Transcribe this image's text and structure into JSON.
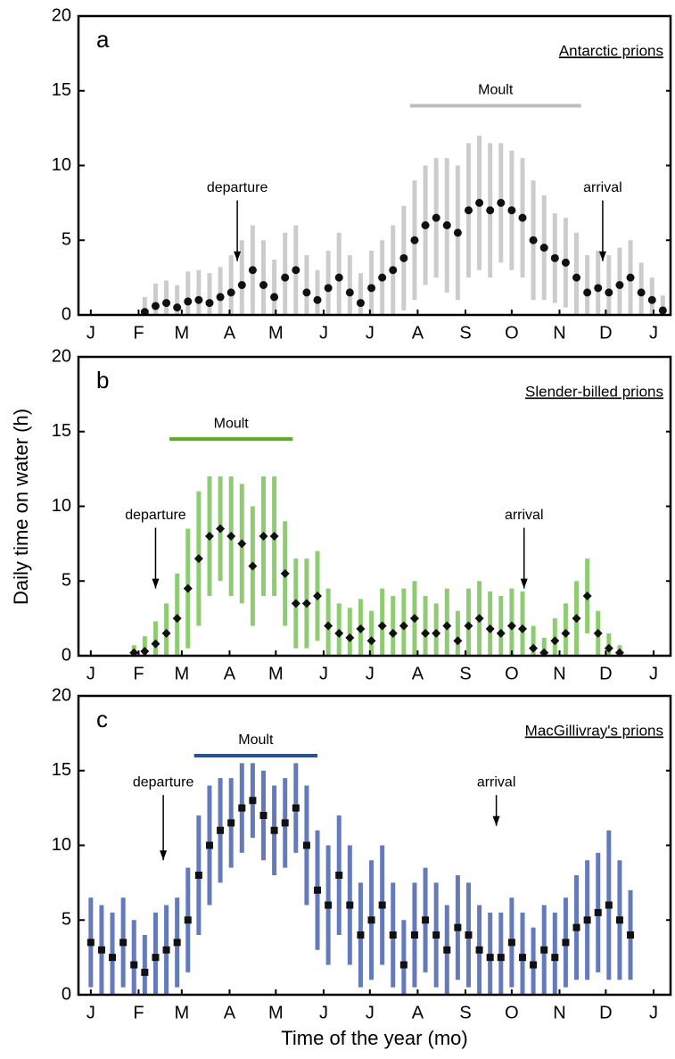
{
  "chart_data": [
    {
      "type": "scatter",
      "panel": "a",
      "title": "Antarctic prions",
      "marker": "circle",
      "color": "#111111",
      "error_color": "#c4c4c4",
      "x": [
        35,
        42,
        49,
        56,
        63,
        70,
        77,
        84,
        91,
        98,
        105,
        112,
        119,
        126,
        133,
        140,
        147,
        154,
        161,
        168,
        175,
        182,
        189,
        196,
        203,
        210,
        217,
        224,
        231,
        238,
        245,
        252,
        259,
        266,
        273,
        280,
        287,
        294,
        301,
        308,
        315,
        322,
        329,
        336,
        343,
        350,
        357,
        364,
        371
      ],
      "values": [
        0.2,
        0.6,
        0.8,
        0.5,
        0.9,
        1.0,
        0.8,
        1.2,
        1.5,
        2.0,
        3.0,
        2.0,
        1.2,
        2.5,
        3.0,
        1.5,
        1.0,
        1.8,
        2.5,
        1.5,
        0.8,
        1.8,
        2.5,
        3.0,
        3.8,
        5.0,
        6.0,
        6.5,
        6.0,
        5.5,
        7.0,
        7.5,
        7.0,
        7.5,
        7.0,
        6.5,
        5.0,
        4.5,
        3.8,
        3.5,
        2.5,
        1.5,
        1.8,
        1.5,
        2.0,
        2.5,
        1.5,
        1.0,
        0.3
      ],
      "errors": [
        1,
        1.5,
        1.5,
        1.5,
        2,
        2,
        2,
        2,
        2.5,
        3,
        3,
        3,
        2.5,
        3,
        3,
        2.5,
        2,
        2.5,
        3,
        2.5,
        2,
        2.5,
        2.5,
        3,
        3.5,
        4,
        4,
        4,
        4.5,
        4.5,
        4.5,
        4.5,
        4.5,
        4,
        4,
        4,
        4,
        3.5,
        3,
        3,
        3,
        2.5,
        2.5,
        2.5,
        2.5,
        2.5,
        2,
        1.5,
        1
      ],
      "annotations": [
        {
          "text": "departure",
          "x": 95,
          "y": 3.6,
          "text_y": 8.5
        },
        {
          "text": "arrival",
          "x": 332,
          "y": 3.6,
          "text_y": 8.5
        }
      ],
      "moult": {
        "label": "Moult",
        "start": 207,
        "end": 318,
        "y": 14,
        "color": "#bdbdbd"
      },
      "xlim": [
        -8,
        376
      ],
      "ylim": [
        0,
        20
      ],
      "yticks": [
        0,
        5,
        10,
        15,
        20
      ],
      "xticks": [
        {
          "value": 0,
          "label": "J"
        },
        {
          "value": 31,
          "label": "F"
        },
        {
          "value": 59,
          "label": "M"
        },
        {
          "value": 90,
          "label": "A"
        },
        {
          "value": 120,
          "label": "M"
        },
        {
          "value": 151,
          "label": "J"
        },
        {
          "value": 181,
          "label": "J"
        },
        {
          "value": 212,
          "label": "A"
        },
        {
          "value": 243,
          "label": "S"
        },
        {
          "value": 273,
          "label": "O"
        },
        {
          "value": 304,
          "label": "N"
        },
        {
          "value": 334,
          "label": "D"
        },
        {
          "value": 365,
          "label": "J"
        }
      ]
    },
    {
      "type": "scatter",
      "panel": "b",
      "title": "Slender-billed prions",
      "ylabel": "Daily time on water (h)",
      "marker": "diamond",
      "color": "#111111",
      "error_color": "#7cc35a",
      "x": [
        28,
        35,
        42,
        49,
        56,
        63,
        70,
        77,
        84,
        91,
        98,
        105,
        112,
        119,
        126,
        133,
        140,
        147,
        154,
        161,
        168,
        175,
        182,
        189,
        196,
        203,
        210,
        217,
        224,
        231,
        238,
        245,
        252,
        259,
        266,
        273,
        280,
        287,
        294,
        301,
        308,
        315,
        322,
        329,
        336,
        343
      ],
      "values": [
        0.2,
        0.3,
        0.8,
        1.5,
        2.5,
        4.5,
        6.5,
        8.0,
        8.5,
        8.0,
        7.5,
        6.0,
        8.0,
        8.0,
        5.5,
        3.5,
        3.5,
        4.0,
        2.0,
        1.5,
        1.2,
        1.8,
        1.0,
        2.0,
        1.5,
        2.0,
        2.5,
        1.5,
        1.5,
        2.0,
        1.0,
        2.0,
        2.5,
        1.8,
        1.5,
        2.0,
        1.8,
        0.5,
        0.2,
        1.0,
        1.5,
        2.5,
        4.0,
        1.5,
        0.5,
        0.2
      ],
      "errors": [
        0.5,
        1,
        1.5,
        2,
        3,
        4,
        4.5,
        4,
        3.5,
        4,
        4,
        4,
        4,
        4,
        3.5,
        3,
        3,
        3,
        2.5,
        2,
        2,
        2,
        2,
        2.5,
        2.5,
        2.5,
        2.5,
        2.5,
        2,
        2.5,
        2,
        2.5,
        2.5,
        2.5,
        2.5,
        2.5,
        2.5,
        1.5,
        1,
        1.5,
        2,
        2.5,
        2.5,
        1.5,
        1,
        0.5
      ],
      "annotations": [
        {
          "text": "departure",
          "x": 42,
          "y": 4.5,
          "text_y": 9.4
        },
        {
          "text": "arrival",
          "x": 281,
          "y": 4.5,
          "text_y": 9.4
        }
      ],
      "moult": {
        "label": "Moult",
        "start": 51,
        "end": 131,
        "y": 14.5,
        "color": "#5aab2a"
      },
      "xlim": [
        -8,
        376
      ],
      "ylim": [
        0,
        20
      ],
      "yticks": [
        0,
        5,
        10,
        15,
        20
      ],
      "xticks": [
        {
          "value": 0,
          "label": "J"
        },
        {
          "value": 31,
          "label": "F"
        },
        {
          "value": 59,
          "label": "M"
        },
        {
          "value": 90,
          "label": "A"
        },
        {
          "value": 120,
          "label": "M"
        },
        {
          "value": 151,
          "label": "J"
        },
        {
          "value": 181,
          "label": "J"
        },
        {
          "value": 212,
          "label": "A"
        },
        {
          "value": 243,
          "label": "S"
        },
        {
          "value": 273,
          "label": "O"
        },
        {
          "value": 304,
          "label": "N"
        },
        {
          "value": 334,
          "label": "D"
        },
        {
          "value": 365,
          "label": "J"
        }
      ]
    },
    {
      "type": "scatter",
      "panel": "c",
      "title": "MacGillivray's prions",
      "xlabel": "Time of the year (mo)",
      "marker": "square",
      "color": "#111111",
      "error_color": "#4a63b0",
      "x": [
        0,
        7,
        14,
        21,
        28,
        35,
        42,
        49,
        56,
        63,
        70,
        77,
        84,
        91,
        98,
        105,
        112,
        119,
        126,
        133,
        140,
        147,
        154,
        161,
        168,
        175,
        182,
        189,
        196,
        203,
        210,
        217,
        224,
        231,
        238,
        245,
        252,
        259,
        266,
        273,
        280,
        287,
        294,
        301,
        308,
        315,
        322,
        329,
        336,
        343,
        350
      ],
      "values": [
        3.5,
        3.0,
        2.5,
        3.5,
        2.0,
        1.5,
        2.5,
        3.0,
        3.5,
        5.0,
        8.0,
        10.0,
        11.0,
        11.5,
        12.5,
        13.0,
        12.0,
        11.0,
        11.5,
        12.5,
        10.0,
        7.0,
        6.0,
        8.0,
        6.0,
        4.0,
        5.0,
        6.0,
        4.0,
        2.0,
        4.0,
        5.0,
        4.0,
        3.0,
        4.5,
        4.0,
        3.0,
        2.5,
        2.5,
        3.5,
        2.5,
        2.0,
        3.0,
        2.5,
        3.5,
        4.5,
        5.0,
        5.5,
        6.0,
        5.0,
        4.0
      ],
      "errors": [
        3,
        3,
        3,
        3,
        3,
        2.5,
        3,
        3,
        3,
        3.5,
        4,
        4,
        3.5,
        3,
        3,
        2.5,
        3,
        3,
        3,
        3,
        4,
        4,
        4,
        4,
        4,
        3.5,
        4,
        4,
        3.5,
        3,
        3.5,
        3.5,
        3.5,
        3,
        3.5,
        3.5,
        3,
        3,
        3,
        3,
        3,
        2.5,
        3,
        3,
        3,
        3.5,
        4,
        4,
        5,
        4,
        3
      ],
      "annotations": [
        {
          "text": "departure",
          "x": 47,
          "y": 9.0,
          "text_y": 14.2
        },
        {
          "text": "arrival",
          "x": 263,
          "y": 11.3,
          "text_y": 14.2
        }
      ],
      "moult": {
        "label": "Moult",
        "start": 67,
        "end": 147,
        "y": 16,
        "color": "#2a4fa0"
      },
      "xlim": [
        -8,
        376
      ],
      "ylim": [
        0,
        20
      ],
      "yticks": [
        0,
        5,
        10,
        15,
        20
      ],
      "xticks": [
        {
          "value": 0,
          "label": "J"
        },
        {
          "value": 31,
          "label": "F"
        },
        {
          "value": 59,
          "label": "M"
        },
        {
          "value": 90,
          "label": "A"
        },
        {
          "value": 120,
          "label": "M"
        },
        {
          "value": 151,
          "label": "J"
        },
        {
          "value": 181,
          "label": "J"
        },
        {
          "value": 212,
          "label": "A"
        },
        {
          "value": 243,
          "label": "S"
        },
        {
          "value": 273,
          "label": "O"
        },
        {
          "value": 304,
          "label": "N"
        },
        {
          "value": 334,
          "label": "D"
        },
        {
          "value": 365,
          "label": "J"
        }
      ]
    }
  ]
}
